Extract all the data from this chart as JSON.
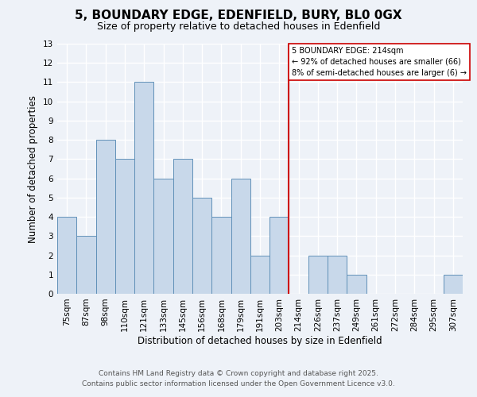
{
  "title": "5, BOUNDARY EDGE, EDENFIELD, BURY, BL0 0GX",
  "subtitle": "Size of property relative to detached houses in Edenfield",
  "xlabel": "Distribution of detached houses by size in Edenfield",
  "ylabel": "Number of detached properties",
  "bin_labels": [
    "75sqm",
    "87sqm",
    "98sqm",
    "110sqm",
    "121sqm",
    "133sqm",
    "145sqm",
    "156sqm",
    "168sqm",
    "179sqm",
    "191sqm",
    "203sqm",
    "214sqm",
    "226sqm",
    "237sqm",
    "249sqm",
    "261sqm",
    "272sqm",
    "284sqm",
    "295sqm",
    "307sqm"
  ],
  "bar_heights": [
    4,
    3,
    8,
    7,
    11,
    6,
    7,
    5,
    4,
    6,
    2,
    4,
    0,
    2,
    2,
    1,
    0,
    0,
    0,
    0,
    1
  ],
  "bar_color": "#c8d8ea",
  "bar_edge_color": "#6090b8",
  "vline_color": "#cc0000",
  "annotation_title": "5 BOUNDARY EDGE: 214sqm",
  "annotation_line1": "← 92% of detached houses are smaller (66)",
  "annotation_line2": "8% of semi-detached houses are larger (6) →",
  "ylim": [
    0,
    13
  ],
  "yticks": [
    0,
    1,
    2,
    3,
    4,
    5,
    6,
    7,
    8,
    9,
    10,
    11,
    12,
    13
  ],
  "footer1": "Contains HM Land Registry data © Crown copyright and database right 2025.",
  "footer2": "Contains public sector information licensed under the Open Government Licence v3.0.",
  "background_color": "#eef2f8",
  "title_fontsize": 11,
  "subtitle_fontsize": 9,
  "label_fontsize": 8.5,
  "tick_fontsize": 7.5,
  "footer_fontsize": 6.5
}
